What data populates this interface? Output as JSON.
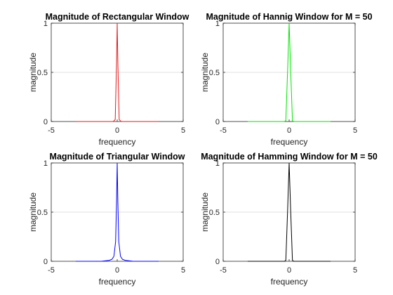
{
  "chart_data": [
    {
      "type": "line",
      "title": "Magnitude of Rectangular Window",
      "xlabel": "frequency",
      "ylabel": "magnitude",
      "xlim": [
        -5,
        5
      ],
      "ylim": [
        0,
        1
      ],
      "xticks": [
        "-5",
        "0",
        "5"
      ],
      "yticks": [
        "0",
        "0.5",
        "1"
      ],
      "grid": "horizontal",
      "color": "#e41a1c",
      "series": [
        {
          "x": [
            -3.14,
            -0.3,
            -0.15,
            -0.05,
            0,
            0.05,
            0.15,
            0.3,
            3.14
          ],
          "y": [
            0,
            0,
            0.02,
            0.6,
            1,
            0.6,
            0.02,
            0,
            0
          ]
        }
      ]
    },
    {
      "type": "line",
      "title": "Magnitude of Hannig Window for M = 50",
      "xlabel": "frequency",
      "ylabel": "magnitude",
      "xlim": [
        -5,
        5
      ],
      "ylim": [
        0,
        1
      ],
      "xticks": [
        "-5",
        "0",
        "5"
      ],
      "yticks": [
        "0",
        "0.5",
        "1"
      ],
      "grid": "horizontal",
      "color": "#00e600",
      "series": [
        {
          "x": [
            -3.14,
            -0.35,
            -0.25,
            -0.12,
            0,
            0.12,
            0.25,
            0.35,
            3.14
          ],
          "y": [
            0,
            0,
            0.01,
            0.5,
            1,
            0.5,
            0.01,
            0,
            0
          ]
        }
      ]
    },
    {
      "type": "line",
      "title": "Magnitude of Triangular Window",
      "xlabel": "frequency",
      "ylabel": "magnitude",
      "xlim": [
        -5,
        5
      ],
      "ylim": [
        0,
        1
      ],
      "xticks": [
        "-5",
        "0",
        "5"
      ],
      "yticks": [
        "0",
        "0.5",
        "1"
      ],
      "grid": "horizontal",
      "color": "#0000ff",
      "series": [
        {
          "x": [
            -3.14,
            -1.2,
            -0.6,
            -0.4,
            -0.25,
            -0.12,
            -0.05,
            0,
            0.05,
            0.12,
            0.25,
            0.4,
            0.6,
            1.2,
            3.14
          ],
          "y": [
            0,
            0,
            0.01,
            0.02,
            0.05,
            0.2,
            0.6,
            1,
            0.6,
            0.2,
            0.05,
            0.02,
            0.01,
            0,
            0
          ]
        }
      ]
    },
    {
      "type": "line",
      "title": "Magnitude of Hamming Window for M = 50",
      "xlabel": "frequency",
      "ylabel": "magnitude",
      "xlim": [
        -5,
        5
      ],
      "ylim": [
        0,
        1
      ],
      "xticks": [
        "-5",
        "0",
        "5"
      ],
      "yticks": [
        "0",
        "0.5",
        "1"
      ],
      "grid": "horizontal",
      "color": "#000000",
      "series": [
        {
          "x": [
            -3.14,
            -0.35,
            -0.25,
            -0.12,
            0,
            0.12,
            0.25,
            0.35,
            3.14
          ],
          "y": [
            0,
            0,
            0.01,
            0.5,
            1,
            0.5,
            0.01,
            0,
            0
          ]
        }
      ]
    }
  ]
}
